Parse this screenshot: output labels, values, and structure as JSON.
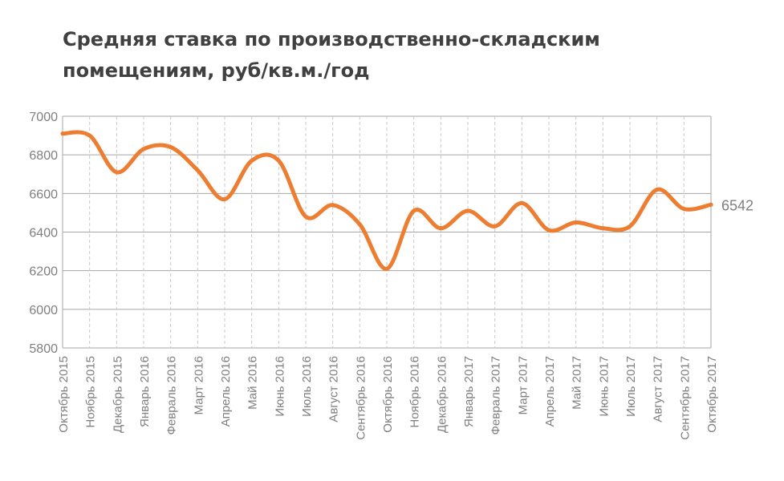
{
  "chart_data": {
    "type": "line",
    "title": "Средняя ставка по производственно-складским помещениям,  руб/кв.м./год",
    "xlabel": "",
    "ylabel": "",
    "ylim": [
      5800,
      7000
    ],
    "yticks": [
      5800,
      6000,
      6200,
      6400,
      6600,
      6800,
      7000
    ],
    "grid": true,
    "legend": "none",
    "series_color": "#ed7d31",
    "categories": [
      "Октябрь 2015",
      "Ноябрь 2015",
      "Декабрь 2015",
      "Январь 2016",
      "Февраль 2016",
      "Март 2016",
      "Апрель 2016",
      "Май 2016",
      "Июнь 2016",
      "Июль 2016",
      "Август 2016",
      "Сентябрь 2016",
      "Октябрь 2016",
      "Ноябрь 2016",
      "Декабрь 2016",
      "Январь 2017",
      "Февраль 2017",
      "Март 2017",
      "Апрель 2017",
      "Май 2017",
      "Июнь 2017",
      "Июль 2017",
      "Август 2017",
      "Сентябрь 2017",
      "Октябрь 2017"
    ],
    "series": [
      {
        "values": [
          6910,
          6900,
          6710,
          6830,
          6840,
          6720,
          6570,
          6770,
          6770,
          6480,
          6540,
          6440,
          6210,
          6510,
          6420,
          6510,
          6430,
          6550,
          6410,
          6450,
          6420,
          6430,
          6620,
          6520,
          6542
        ]
      }
    ],
    "data_labels": [
      {
        "index": 24,
        "text": "6542"
      }
    ]
  }
}
